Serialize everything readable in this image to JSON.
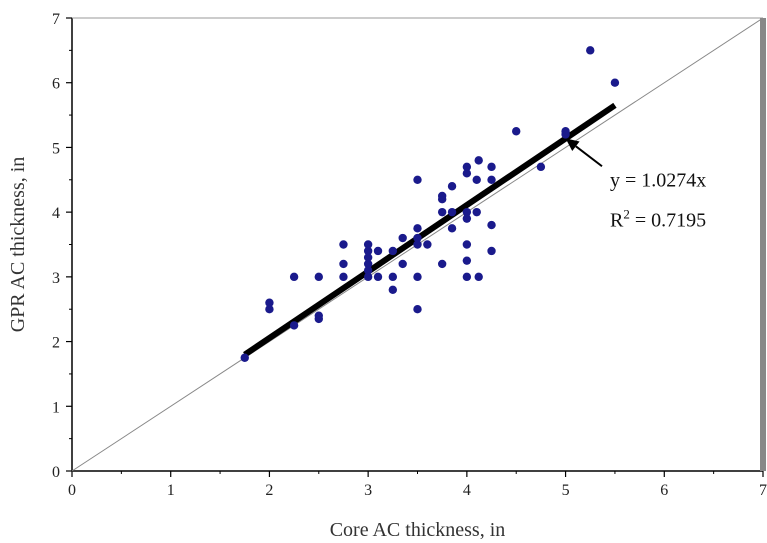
{
  "chart_data": {
    "type": "scatter",
    "title": "",
    "xlabel": "Core AC thickness, in",
    "ylabel": "GPR AC thickness, in",
    "xlim": [
      0,
      7
    ],
    "ylim": [
      0,
      7
    ],
    "x_ticks": [
      "0",
      "1",
      "2",
      "3",
      "4",
      "5",
      "6",
      "7"
    ],
    "y_ticks": [
      "0",
      "1",
      "2",
      "3",
      "4",
      "5",
      "6",
      "7"
    ],
    "grid": false,
    "legend": "none",
    "colors": {
      "points": "#1a1a8c",
      "fit_line": "#000000",
      "equality_line": "#888888",
      "right_border": "#888888"
    },
    "series": [
      {
        "points": [
          [
            1.75,
            1.75
          ],
          [
            2.0,
            2.5
          ],
          [
            2.0,
            2.6
          ],
          [
            2.25,
            2.25
          ],
          [
            2.25,
            3.0
          ],
          [
            2.5,
            2.35
          ],
          [
            2.5,
            2.4
          ],
          [
            2.5,
            3.0
          ],
          [
            2.75,
            3.0
          ],
          [
            2.75,
            3.2
          ],
          [
            2.75,
            3.5
          ],
          [
            3.0,
            3.0
          ],
          [
            3.0,
            3.1
          ],
          [
            3.0,
            3.2
          ],
          [
            3.0,
            3.3
          ],
          [
            3.0,
            3.4
          ],
          [
            3.0,
            3.5
          ],
          [
            3.1,
            3.4
          ],
          [
            3.1,
            3.0
          ],
          [
            3.25,
            2.8
          ],
          [
            3.25,
            3.0
          ],
          [
            3.25,
            3.4
          ],
          [
            3.35,
            3.2
          ],
          [
            3.35,
            3.6
          ],
          [
            3.5,
            2.5
          ],
          [
            3.5,
            3.0
          ],
          [
            3.5,
            3.5
          ],
          [
            3.5,
            3.6
          ],
          [
            3.5,
            3.75
          ],
          [
            3.5,
            4.5
          ],
          [
            3.6,
            3.5
          ],
          [
            3.75,
            3.2
          ],
          [
            3.75,
            4.0
          ],
          [
            3.75,
            4.2
          ],
          [
            3.75,
            4.25
          ],
          [
            3.85,
            3.75
          ],
          [
            3.85,
            4.0
          ],
          [
            3.85,
            4.4
          ],
          [
            4.0,
            3.0
          ],
          [
            4.0,
            3.25
          ],
          [
            4.0,
            3.5
          ],
          [
            4.0,
            3.9
          ],
          [
            4.0,
            4.0
          ],
          [
            4.0,
            4.6
          ],
          [
            4.0,
            4.7
          ],
          [
            4.1,
            4.5
          ],
          [
            4.1,
            4.0
          ],
          [
            4.12,
            3.0
          ],
          [
            4.12,
            4.8
          ],
          [
            4.25,
            3.4
          ],
          [
            4.25,
            3.8
          ],
          [
            4.25,
            4.5
          ],
          [
            4.25,
            4.7
          ],
          [
            4.5,
            5.25
          ],
          [
            4.75,
            4.7
          ],
          [
            5.0,
            5.2
          ],
          [
            5.0,
            5.25
          ],
          [
            5.25,
            6.5
          ],
          [
            5.5,
            6.0
          ]
        ]
      }
    ],
    "fit_line": {
      "slope": 1.0274,
      "x_range": [
        1.75,
        5.5
      ]
    },
    "equality_line": {
      "slope": 1,
      "x_range": [
        0,
        7
      ]
    },
    "annotation": {
      "equation": "y = 1.0274x",
      "r2_base": "R",
      "r2_sup": "2",
      "r2_value": " = 0.7195",
      "arrow_target": [
        5.0,
        5.14
      ],
      "text_anchor": [
        5.45,
        4.4
      ]
    }
  }
}
